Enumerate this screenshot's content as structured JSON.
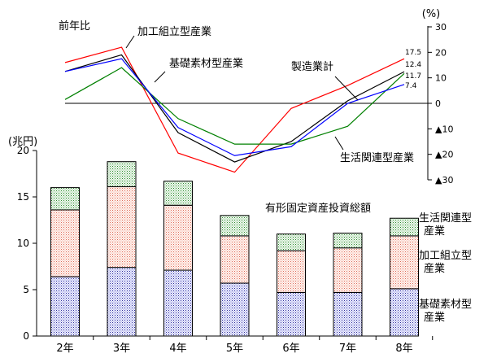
{
  "chart_data": [
    {
      "type": "line",
      "label": "前年比",
      "unit_label": "(%)",
      "categories": [
        "2年",
        "3年",
        "4年",
        "5年",
        "6年",
        "7年",
        "8年"
      ],
      "ylim": [
        -30,
        30
      ],
      "y_ticks": [
        30,
        20,
        10,
        0,
        -10,
        -20,
        -30
      ],
      "y_tick_labels": [
        "30",
        "20",
        "10",
        "0",
        "▲10",
        "▲20",
        "▲30"
      ],
      "series": [
        {
          "name": "加工組立型産業",
          "color": "#ff0000",
          "values": [
            16,
            22,
            -19.5,
            -27,
            -2,
            7,
            17.5
          ],
          "end_label": "17.5"
        },
        {
          "name": "製造業計",
          "color": "#000000",
          "values": [
            12.5,
            19,
            -11.5,
            -23,
            -15,
            1,
            12.4
          ],
          "end_label": "12.4"
        },
        {
          "name": "生活関連型産業",
          "color": "#008000",
          "values": [
            1.5,
            14,
            -6,
            -16,
            -16,
            -9,
            11.7
          ],
          "end_label": "11.7"
        },
        {
          "name": "基礎素材型産業",
          "color": "#0000ff",
          "values": [
            12.5,
            17.5,
            -9.5,
            -20.5,
            -17,
            0,
            7.4
          ],
          "end_label": "7.4"
        }
      ]
    },
    {
      "type": "bar",
      "stacked": true,
      "title": "有形固定資産投資総額",
      "unit_label": "(兆円)",
      "categories": [
        "2年",
        "3年",
        "4年",
        "5年",
        "6年",
        "7年",
        "8年"
      ],
      "ylim": [
        0,
        20
      ],
      "y_ticks": [
        0,
        5,
        10,
        15,
        20
      ],
      "series": [
        {
          "name": "基礎素材型産業",
          "legend": [
            "基礎素材型",
            "産業"
          ],
          "color": "#3333aa",
          "values": [
            6.4,
            7.4,
            7.1,
            5.7,
            4.7,
            4.7,
            5.1
          ]
        },
        {
          "name": "加工組立型産業",
          "legend": [
            "加工組立型",
            "産業"
          ],
          "color": "#e07060",
          "values": [
            7.2,
            8.7,
            7.0,
            5.1,
            4.5,
            4.8,
            5.7
          ]
        },
        {
          "name": "生活関連型産業",
          "legend": [
            "生活関連型",
            "産業"
          ],
          "color": "#3a9a3a",
          "values": [
            2.4,
            2.7,
            2.6,
            2.2,
            1.8,
            1.6,
            1.9
          ]
        }
      ]
    }
  ]
}
